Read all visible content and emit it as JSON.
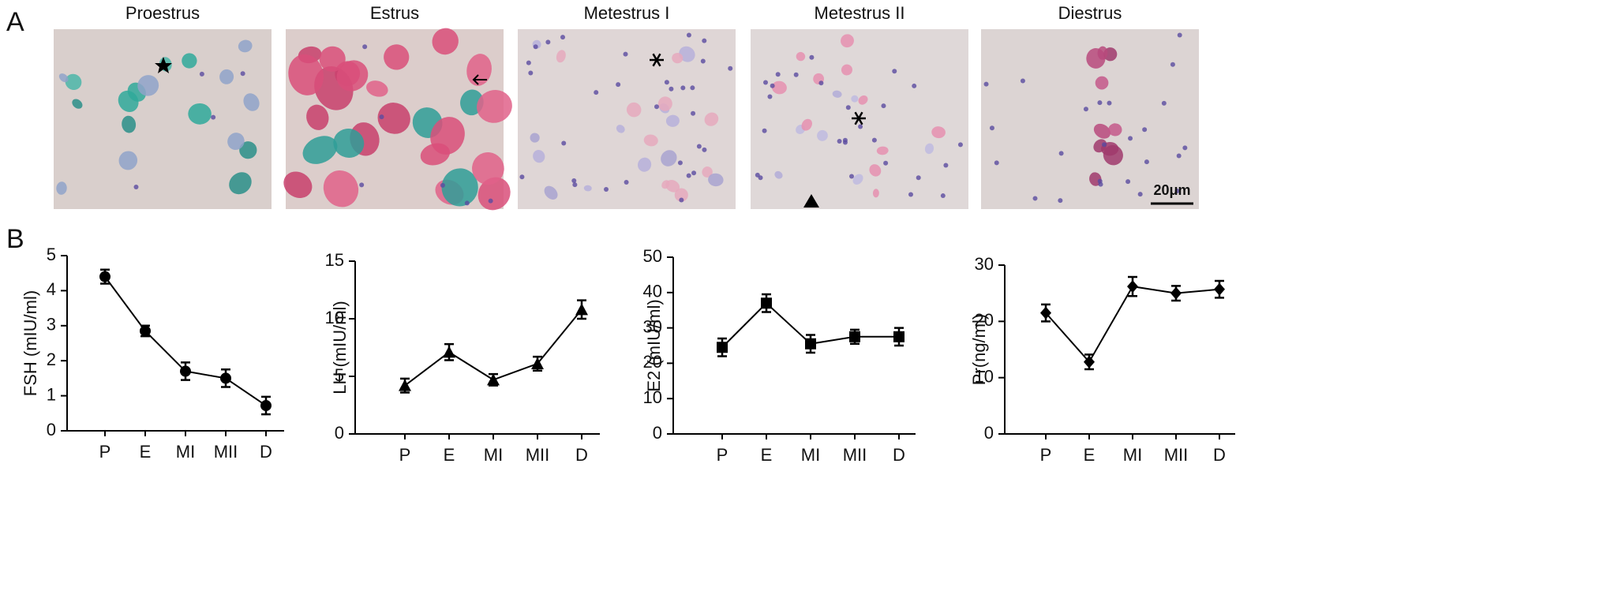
{
  "panel_labels": [
    "A",
    "B"
  ],
  "micrographs": [
    {
      "title": "Proestrus"
    },
    {
      "title": "Estrus"
    },
    {
      "title": "Metestrus I"
    },
    {
      "title": "Metestrus II"
    },
    {
      "title": "Diestrus"
    }
  ],
  "scale_bar": "20μm",
  "chart_data": [
    {
      "type": "line",
      "y_label": "FSH (mIU/ml)",
      "marker": "circle",
      "color": "#000000",
      "categories": [
        "P",
        "E",
        "MI",
        "MII",
        "D"
      ],
      "values": [
        4.4,
        2.85,
        1.7,
        1.5,
        0.72
      ],
      "errors": [
        0.2,
        0.15,
        0.25,
        0.25,
        0.25
      ],
      "ylim": [
        0,
        5
      ],
      "yticks": [
        0,
        1,
        2,
        3,
        4,
        5
      ]
    },
    {
      "type": "line",
      "y_label": "LH (mIU/ml)",
      "marker": "triangle",
      "color": "#000000",
      "categories": [
        "P",
        "E",
        "MI",
        "MII",
        "D"
      ],
      "values": [
        4.2,
        7.1,
        4.7,
        6.1,
        10.8
      ],
      "errors": [
        0.6,
        0.7,
        0.5,
        0.6,
        0.8
      ],
      "ylim": [
        0,
        15
      ],
      "yticks": [
        0,
        5,
        10,
        15
      ]
    },
    {
      "type": "line",
      "y_label": "E2 (mIU/ml)",
      "marker": "square",
      "color": "#000000",
      "categories": [
        "P",
        "E",
        "MI",
        "MII",
        "D"
      ],
      "values": [
        24.5,
        37,
        25.5,
        27.5,
        27.5
      ],
      "errors": [
        2.5,
        2.5,
        2.5,
        2,
        2.5
      ],
      "ylim": [
        0,
        50
      ],
      "yticks": [
        0,
        10,
        20,
        30,
        40,
        50
      ]
    },
    {
      "type": "line",
      "y_label": "Pr(ng/ml)",
      "marker": "diamond",
      "color": "#000000",
      "categories": [
        "P",
        "E",
        "MI",
        "MII",
        "D"
      ],
      "values": [
        21.5,
        12.8,
        26.2,
        25,
        25.7
      ],
      "errors": [
        1.5,
        1.3,
        1.7,
        1.3,
        1.5
      ],
      "ylim": [
        0,
        30
      ],
      "yticks": [
        0,
        10,
        20,
        30
      ]
    }
  ]
}
